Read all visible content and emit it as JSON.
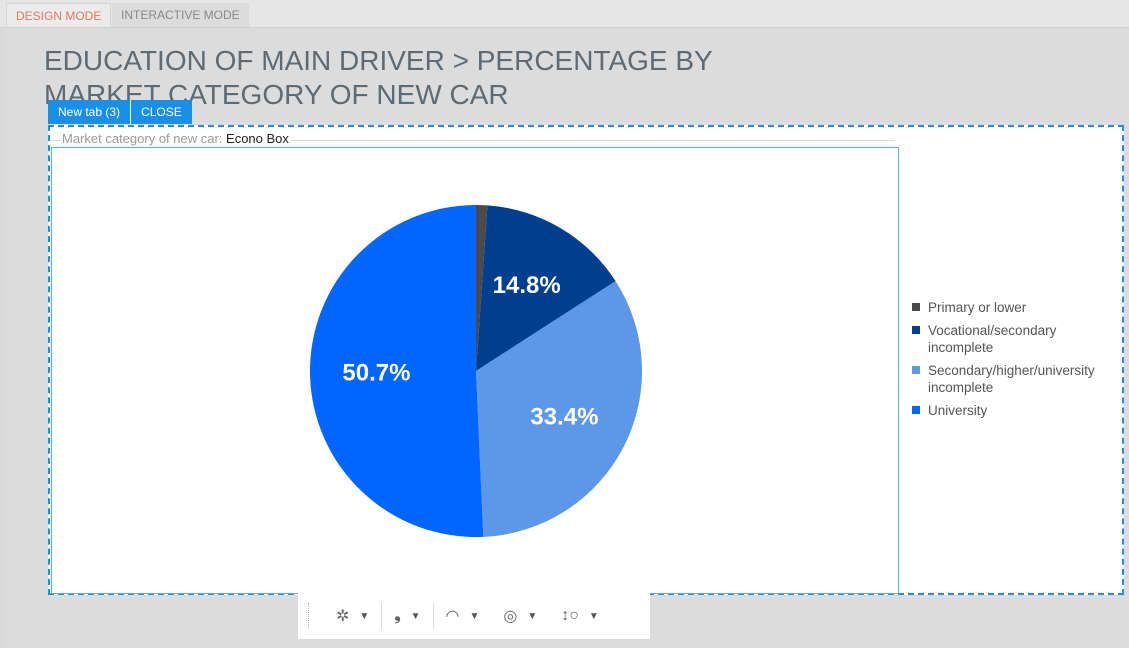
{
  "modes": {
    "design": "DESIGN MODE",
    "interactive": "INTERACTIVE MODE"
  },
  "page": {
    "title": "EDUCATION OF MAIN DRIVER > PERCENTAGE BY MARKET CATEGORY OF NEW CAR"
  },
  "widget": {
    "tabs": [
      "New tab (3)",
      "CLOSE"
    ],
    "filter_label": "Market category of new car:",
    "filter_value": "Econo Box"
  },
  "chart_data": {
    "type": "pie",
    "categories": [
      "Primary or lower",
      "Vocational/secondary incomplete",
      "Secondary/higher/university incomplete",
      "University"
    ],
    "values": [
      1.1,
      14.8,
      33.4,
      50.7
    ],
    "data_labels": [
      "",
      "14.8%",
      "33.4%",
      "50.7%"
    ],
    "colors": [
      "#4a4a4a",
      "#003f8f",
      "#5c97e8",
      "#0066ff"
    ],
    "legend_position": "right"
  },
  "toolbar": {
    "icons": [
      "palette-icon",
      "quote-icon",
      "chart-type-icon",
      "target-icon",
      "sort-icon"
    ]
  }
}
